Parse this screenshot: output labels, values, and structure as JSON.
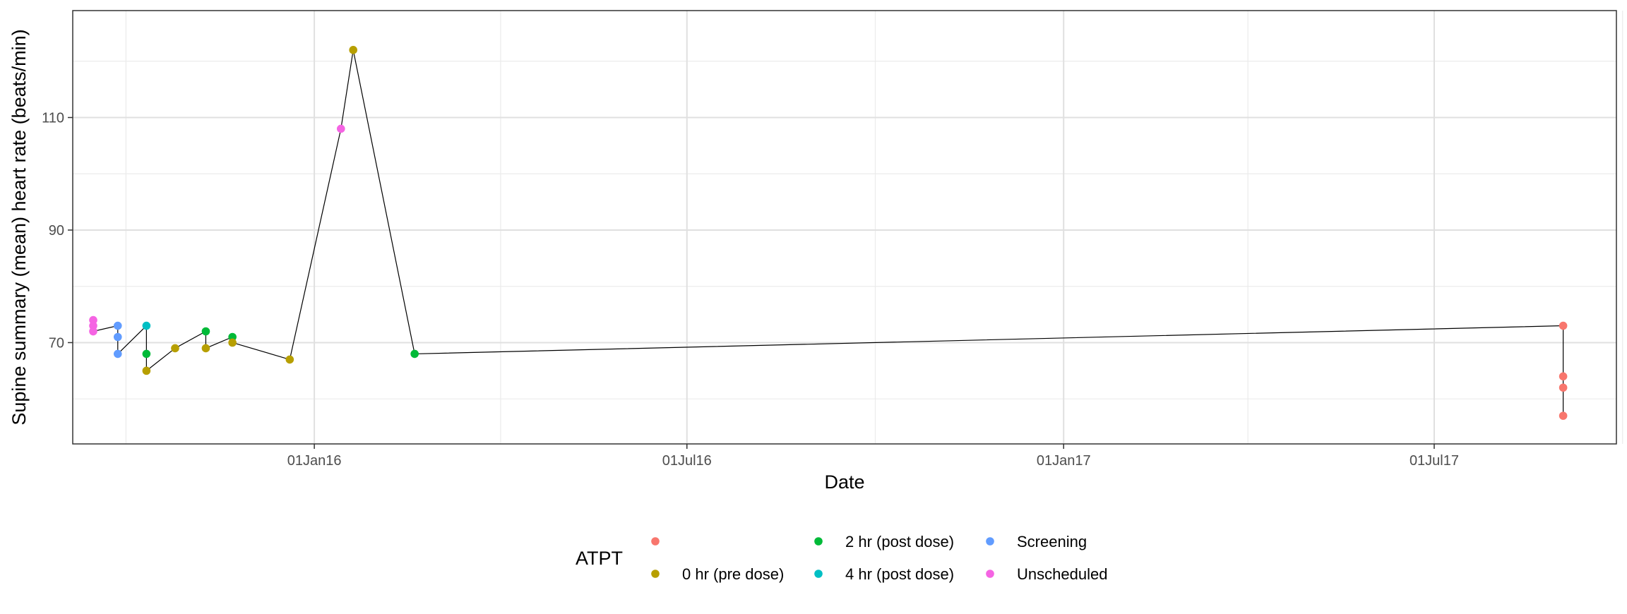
{
  "chart_data": {
    "type": "scatter",
    "title": "",
    "xlabel": "Date",
    "ylabel": "Supine summary (mean) heart rate (beats/min)",
    "x_axis_type": "date",
    "xlim": [
      "2015-09-05",
      "2017-09-28"
    ],
    "ylim": [
      52,
      129
    ],
    "x_ticks": [
      {
        "date": "2016-01-01",
        "label": "01Jan16"
      },
      {
        "date": "2016-07-01",
        "label": "01Jul16"
      },
      {
        "date": "2017-01-01",
        "label": "01Jan17"
      },
      {
        "date": "2017-07-01",
        "label": "01Jul17"
      }
    ],
    "x_minor_gridlines": [
      "2015-10-01",
      "2016-04-01",
      "2016-10-01",
      "2017-04-01",
      "2017-10-01"
    ],
    "y_ticks": [
      70,
      90,
      110
    ],
    "y_minor_gridlines": [
      60,
      80,
      100,
      120
    ],
    "grid": true,
    "theme": "bw",
    "line_color": "#000000",
    "legend": {
      "title": "ATPT",
      "position": "bottom",
      "entries": [
        {
          "label": "",
          "color": "#F8766D"
        },
        {
          "label": "0 hr (pre dose)",
          "color": "#B79F00"
        },
        {
          "label": "2 hr (post dose)",
          "color": "#00BA38"
        },
        {
          "label": "4 hr (post dose)",
          "color": "#00BFC4"
        },
        {
          "label": "Screening",
          "color": "#619CFF"
        },
        {
          "label": "Unscheduled",
          "color": "#F564E3"
        }
      ]
    },
    "points": [
      {
        "date": "2015-09-15",
        "y": 74,
        "group": "Unscheduled"
      },
      {
        "date": "2015-09-15",
        "y": 73,
        "group": "Unscheduled"
      },
      {
        "date": "2015-09-15",
        "y": 72,
        "group": "Unscheduled"
      },
      {
        "date": "2015-09-27",
        "y": 73,
        "group": "Screening"
      },
      {
        "date": "2015-09-27",
        "y": 71,
        "group": "Screening"
      },
      {
        "date": "2015-09-27",
        "y": 68,
        "group": "Screening"
      },
      {
        "date": "2015-10-11",
        "y": 73,
        "group": "4 hr (post dose)"
      },
      {
        "date": "2015-10-11",
        "y": 68,
        "group": "2 hr (post dose)"
      },
      {
        "date": "2015-10-11",
        "y": 65,
        "group": "0 hr (pre dose)"
      },
      {
        "date": "2015-10-25",
        "y": 69,
        "group": "0 hr (pre dose)"
      },
      {
        "date": "2015-11-09",
        "y": 72,
        "group": "2 hr (post dose)"
      },
      {
        "date": "2015-11-09",
        "y": 69,
        "group": "0 hr (pre dose)"
      },
      {
        "date": "2015-11-22",
        "y": 71,
        "group": "2 hr (post dose)"
      },
      {
        "date": "2015-11-22",
        "y": 70,
        "group": "0 hr (pre dose)"
      },
      {
        "date": "2015-12-20",
        "y": 67,
        "group": "0 hr (pre dose)"
      },
      {
        "date": "2016-01-14",
        "y": 108,
        "group": "Unscheduled"
      },
      {
        "date": "2016-01-20",
        "y": 122,
        "group": "0 hr (pre dose)"
      },
      {
        "date": "2016-02-19",
        "y": 68,
        "group": "2 hr (post dose)"
      },
      {
        "date": "2017-09-02",
        "y": 73,
        "group": ""
      },
      {
        "date": "2017-09-02",
        "y": 64,
        "group": ""
      },
      {
        "date": "2017-09-02",
        "y": 62,
        "group": ""
      },
      {
        "date": "2017-09-02",
        "y": 57,
        "group": ""
      }
    ]
  }
}
